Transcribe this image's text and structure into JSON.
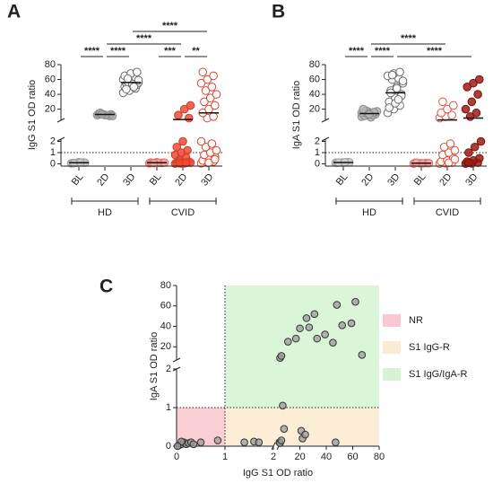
{
  "chart_data": [
    {
      "type": "strip",
      "panel": "A",
      "y_label": "IgG S1 OD ratio",
      "categories": [
        "BL",
        "2D",
        "3D",
        "BL",
        "2D",
        "3D"
      ],
      "colors": [
        "#c8c8c8",
        "#a9a9a9",
        "#ffffff",
        "#f4a3a0",
        "#ef4a36",
        "#ffffff"
      ],
      "strokes": [
        "#9a9a9a",
        "#8a8a8a",
        "#6a6a6a",
        "#e06f6a",
        "#d23a26",
        "#d6452f"
      ],
      "values": [
        [
          0.05,
          0.1,
          0.12,
          0.08,
          0.15,
          0.1,
          0.06,
          0.11
        ],
        [
          12,
          13,
          11,
          14,
          12,
          13,
          15,
          12,
          11,
          13
        ],
        [
          42,
          45,
          48,
          50,
          52,
          53,
          55,
          55,
          56,
          57,
          58,
          60,
          62,
          63,
          65,
          68,
          70,
          47,
          54,
          59,
          61,
          50
        ],
        [
          0.05,
          0.1,
          0.08,
          0.12,
          0.15,
          0.1,
          0.07,
          0.09,
          0.11,
          0.06
        ],
        [
          0.02,
          0.05,
          0.1,
          0.1,
          0.15,
          0.2,
          0.3,
          0.05,
          0.1,
          0.4,
          0.6,
          0.8,
          1.0,
          1.2,
          1.5,
          2.0,
          8,
          12,
          20,
          25,
          0.05,
          0.1
        ],
        [
          0.05,
          0.1,
          0.2,
          0.3,
          0.5,
          0.6,
          0.8,
          1.0,
          1.2,
          1.5,
          1.8,
          2.0,
          8,
          10,
          15,
          20,
          25,
          30,
          35,
          40,
          45,
          50,
          55,
          60,
          65,
          70,
          0.1,
          0.4
        ]
      ],
      "means": [
        0.1,
        12.8,
        56,
        0.1,
        6,
        15
      ],
      "ylim": [
        -0.2,
        80
      ],
      "ybreak": [
        2.2,
        5
      ],
      "yticks": [
        0,
        1,
        2,
        20,
        40,
        60,
        80
      ],
      "threshold": 1,
      "groups": [
        {
          "name": "HD",
          "span": [
            0,
            2
          ]
        },
        {
          "name": "CVID",
          "span": [
            3,
            5
          ]
        }
      ],
      "comparisons": [
        {
          "from": 0,
          "to": 1,
          "label": "****"
        },
        {
          "from": 3,
          "to": 4,
          "label": "***"
        },
        {
          "from": 1,
          "to": 2,
          "label": "****"
        },
        {
          "from": 4,
          "to": 5,
          "label": "**"
        },
        {
          "from": 1,
          "to": 4,
          "label": "****"
        },
        {
          "from": 2,
          "to": 5,
          "label": "****"
        }
      ]
    },
    {
      "type": "strip",
      "panel": "B",
      "y_label": "IgA S1 OD ratio",
      "categories": [
        "BL",
        "2D",
        "3D",
        "BL",
        "2D",
        "3D"
      ],
      "colors": [
        "#d0d0d0",
        "#b5b5b5",
        "#ffffff",
        "#f4a3a0",
        "#ffffff",
        "#9e1c14"
      ],
      "strokes": [
        "#a0a0a0",
        "#8a8a8a",
        "#6a6a6a",
        "#e06f6a",
        "#e0503c",
        "#7a120c"
      ],
      "values": [
        [
          0.1,
          0.12,
          0.15,
          0.1,
          0.08,
          0.13,
          0.11,
          0.14
        ],
        [
          10,
          12,
          14,
          15,
          16,
          13,
          11,
          9,
          17,
          18,
          12,
          15,
          14,
          16,
          20,
          13
        ],
        [
          15,
          20,
          25,
          30,
          35,
          40,
          45,
          50,
          55,
          60,
          62,
          65,
          68,
          70,
          22,
          28,
          38,
          42,
          48,
          58,
          66,
          33
        ],
        [
          0.02,
          0.05,
          0.08,
          0.1,
          0.05,
          0.07,
          0.1,
          0.04,
          0.06
        ],
        [
          0.02,
          0.05,
          0.1,
          0.2,
          0.3,
          0.5,
          0.8,
          1.0,
          1.2,
          1.5,
          1.8,
          8,
          10,
          12,
          15,
          20,
          25,
          30,
          0.1,
          0.4
        ],
        [
          0.02,
          0.05,
          0.1,
          0.2,
          0.3,
          0.5,
          1.0,
          1.5,
          2.0,
          10,
          15,
          20,
          30,
          40,
          50,
          55,
          60,
          0.1
        ]
      ],
      "means": [
        0.12,
        14,
        42,
        0.06,
        5.5,
        8
      ],
      "ylim": [
        -0.2,
        80
      ],
      "ybreak": [
        2.2,
        5
      ],
      "yticks": [
        0,
        1,
        2,
        20,
        40,
        60,
        80
      ],
      "threshold": 1,
      "groups": [
        {
          "name": "HD",
          "span": [
            0,
            2
          ]
        },
        {
          "name": "CVID",
          "span": [
            3,
            5
          ]
        }
      ],
      "comparisons": [
        {
          "from": 0,
          "to": 1,
          "label": "****"
        },
        {
          "from": 1,
          "to": 2,
          "label": "****"
        },
        {
          "from": 1,
          "to": 4,
          "label": "****"
        },
        {
          "from": 2,
          "to": 5,
          "label": "****"
        }
      ]
    },
    {
      "type": "scatter",
      "panel": "C",
      "x_label": "IgG S1 OD ratio",
      "y_label": "IgA S1 OD ratio",
      "x": [
        0.05,
        0.1,
        0.15,
        0.2,
        0.25,
        0.3,
        0.35,
        0.1,
        0.5,
        0.85,
        0.02,
        1.4,
        1.6,
        1.7,
        4.5,
        5,
        6,
        8,
        21,
        22,
        24,
        47,
        7,
        5,
        6,
        11,
        17,
        20,
        25,
        27,
        31,
        33,
        39,
        45,
        48,
        52,
        59,
        62,
        67
      ],
      "y": [
        0.02,
        0.05,
        0.1,
        0.05,
        0.08,
        0.1,
        0.05,
        0.12,
        0.1,
        0.15,
        0.0,
        0.1,
        0.12,
        0.1,
        0.1,
        0.08,
        0.15,
        0.45,
        0.4,
        0.2,
        0.3,
        0.1,
        1.05,
        9,
        11,
        25,
        28,
        38,
        48,
        39,
        52,
        28,
        32,
        24,
        61,
        41,
        43,
        64,
        12
      ],
      "color": "#9a9a9a",
      "xlim": [
        0,
        80
      ],
      "xbreak": [
        2,
        4
      ],
      "xticks": [
        0,
        1,
        2,
        20,
        40,
        60,
        80
      ],
      "ylim": [
        0,
        80
      ],
      "ybreak": [
        2,
        7
      ],
      "yticks": [
        0,
        1,
        2,
        20,
        40,
        60,
        80
      ],
      "threshold": 1,
      "regions": [
        {
          "name": "NR",
          "color": "#f8c9d0"
        },
        {
          "name": "S1 IgG-R",
          "color": "#fcebd3"
        },
        {
          "name": "S1 IgG/IgA-R",
          "color": "#d6f4d3"
        }
      ]
    }
  ]
}
